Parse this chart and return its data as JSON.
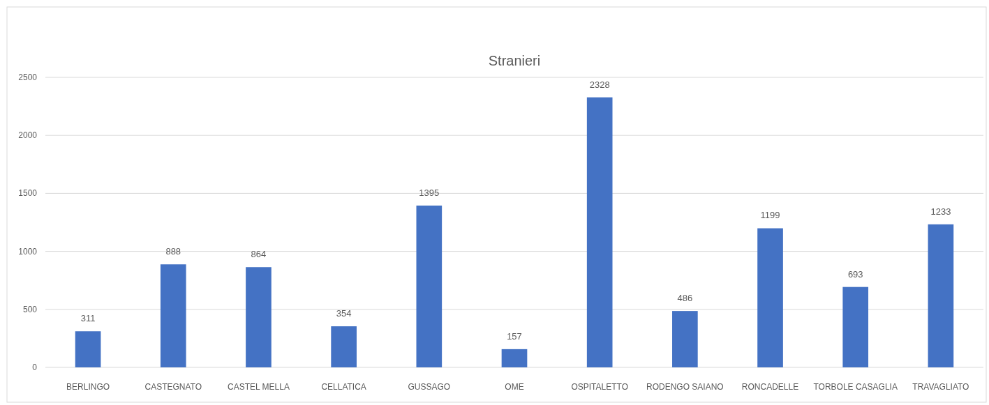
{
  "chart_data": {
    "type": "bar",
    "title": "Stranieri",
    "categories": [
      "BERLINGO",
      "CASTEGNATO",
      "CASTEL MELLA",
      "CELLATICA",
      "GUSSAGO",
      "OME",
      "OSPITALETTO",
      "RODENGO SAIANO",
      "RONCADELLE",
      "TORBOLE CASAGLIA",
      "TRAVAGLIATO"
    ],
    "values": [
      311,
      888,
      864,
      354,
      1395,
      157,
      2328,
      486,
      1199,
      693,
      1233
    ],
    "color": "#4472c4",
    "ylim": [
      0,
      2500
    ],
    "yticks": [
      0,
      500,
      1000,
      1500,
      2000,
      2500
    ],
    "grid": "y",
    "data_labels": true
  }
}
